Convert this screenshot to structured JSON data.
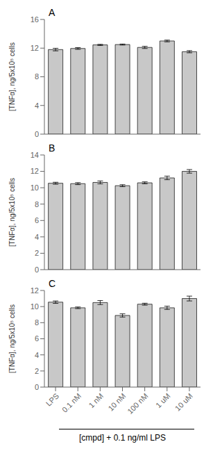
{
  "chart_data": [
    {
      "type": "bar",
      "annotation": "A",
      "categories": [
        "LPS",
        "0.1 nM",
        "1 nM",
        "10 nM",
        "100 nM",
        "1 uM",
        "10 uM"
      ],
      "values": [
        11.8,
        11.95,
        12.45,
        12.5,
        12.1,
        13.0,
        11.5
      ],
      "errors": [
        0.18,
        0.12,
        0.08,
        0.07,
        0.15,
        0.12,
        0.15
      ],
      "color": "#c8c8c8",
      "ylim": [
        0,
        16
      ],
      "yticks": [
        0,
        4,
        8,
        12,
        16
      ],
      "ylabel": "[TNFα], ng/5x10⁵ cells",
      "tick_labels": "y"
    },
    {
      "type": "bar",
      "annotation": "B",
      "categories": [
        "LPS",
        "0.1 nM",
        "1 nM",
        "10 nM",
        "100 nM",
        "1 uM",
        "10 uM"
      ],
      "values": [
        10.55,
        10.5,
        10.65,
        10.25,
        10.6,
        11.2,
        12.0
      ],
      "errors": [
        0.12,
        0.12,
        0.18,
        0.12,
        0.12,
        0.22,
        0.22
      ],
      "color": "#c8c8c8",
      "ylim": [
        0,
        14
      ],
      "yticks": [
        0,
        2,
        4,
        6,
        8,
        10,
        12,
        14
      ],
      "ylabel": "[TNFα], ng/5x10⁵ cells",
      "tick_labels": "y"
    },
    {
      "type": "bar",
      "annotation": "C",
      "categories": [
        "LPS",
        "0.1 nM",
        "1 nM",
        "10 nM",
        "100 nM",
        "1 uM",
        "10 uM"
      ],
      "values": [
        10.55,
        9.85,
        10.5,
        8.9,
        10.3,
        9.85,
        11.0
      ],
      "errors": [
        0.15,
        0.1,
        0.25,
        0.2,
        0.12,
        0.2,
        0.3
      ],
      "color": "#c8c8c8",
      "ylim": [
        0,
        12
      ],
      "yticks": [
        0,
        2,
        4,
        6,
        8,
        10,
        12
      ],
      "ylabel": "[TNFα], ng/5x10⁵ cells",
      "xlabel": "[cmpd] + 0.1 ng/ml LPS"
    }
  ]
}
